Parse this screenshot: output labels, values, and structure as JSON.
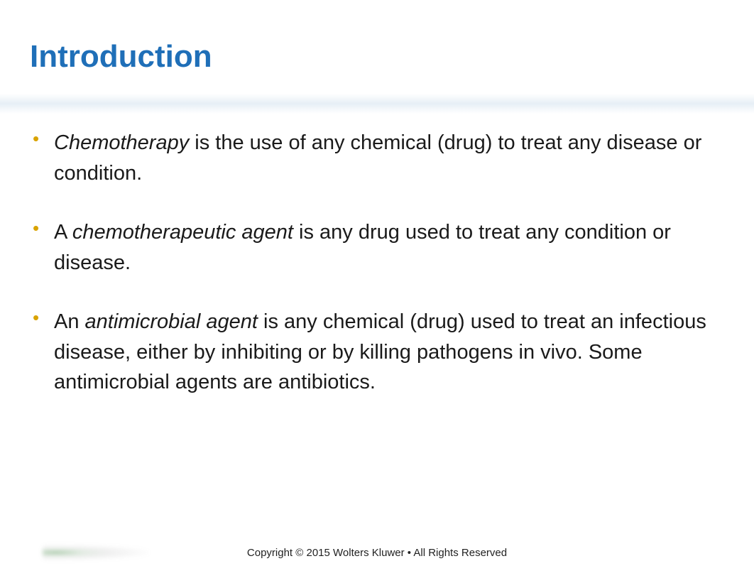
{
  "title": "Introduction",
  "bullets": [
    {
      "italic": "Chemotherapy",
      "rest": " is the use of any chemical (drug) to treat any disease or condition."
    },
    {
      "pre": "A ",
      "italic": "chemotherapeutic agent",
      "rest": " is any drug used to treat any condition or disease."
    },
    {
      "pre": "An ",
      "italic": "antimicrobial agent",
      "rest": " is any chemical (drug) used to treat an infectious disease, either by inhibiting or by killing pathogens in vivo. Some antimicrobial agents are antibiotics."
    }
  ],
  "footer": "Copyright © 2015 Wolters Kluwer • All Rights Reserved",
  "colors": {
    "title": "#1f6fb8",
    "bullet_marker": "#d9a300",
    "text": "#1a1a1a",
    "background": "#ffffff"
  },
  "typography": {
    "title_fontsize": 44,
    "body_fontsize": 29,
    "footer_fontsize": 15,
    "title_weight": "bold"
  }
}
